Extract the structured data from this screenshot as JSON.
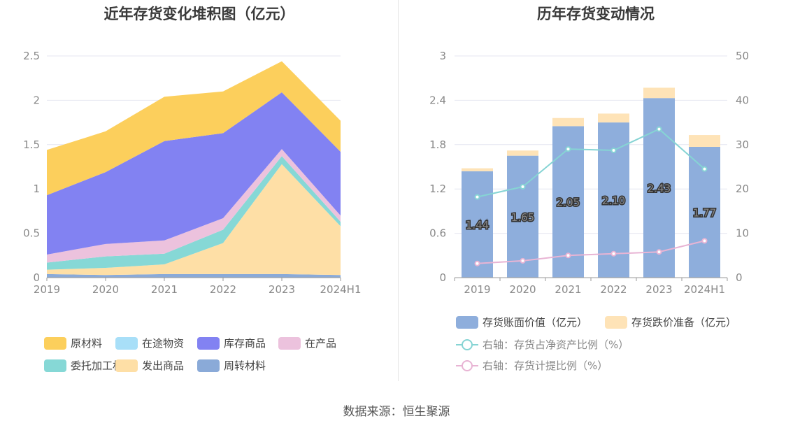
{
  "left_title": "近年存货变化堆积图（亿元）",
  "right_title": "历年存货变动情况",
  "source": "数据来源：恒生聚源",
  "colors": {
    "raw": "#fccf5c",
    "transit": "#a8dff8",
    "stock": "#8282f2",
    "wip": "#ecc2dd",
    "consign": "#86d8d6",
    "shipped": "#fedfa6",
    "turnover": "#8aaad8",
    "bar_main": "#8eaedc",
    "bar_prov": "#fee3b7",
    "line_ratio": "#86d4d4",
    "line_prov": "#e8b4d4",
    "grid": "#e4e6f0",
    "axis": "#999999"
  },
  "chart_data": [
    {
      "type": "area",
      "stacked": true,
      "categories": [
        "2019",
        "2020",
        "2021",
        "2022",
        "2023",
        "2024H1"
      ],
      "ylim": [
        0,
        2.5
      ],
      "yticks": [
        "0",
        "0.5",
        "1",
        "1.5",
        "2",
        "2.5"
      ],
      "grid": true,
      "legend_position": "bottom",
      "series": [
        {
          "name": "周转材料",
          "color_key": "turnover",
          "values": [
            0.04,
            0.03,
            0.04,
            0.04,
            0.04,
            0.03
          ]
        },
        {
          "name": "发出商品",
          "color_key": "shipped",
          "values": [
            0.05,
            0.08,
            0.11,
            0.35,
            1.24,
            0.55
          ]
        },
        {
          "name": "委托加工材料",
          "color_key": "consign",
          "values": [
            0.08,
            0.13,
            0.12,
            0.15,
            0.09,
            0.05
          ]
        },
        {
          "name": "在产品",
          "color_key": "wip",
          "values": [
            0.09,
            0.14,
            0.15,
            0.13,
            0.08,
            0.07
          ]
        },
        {
          "name": "在途物资",
          "color_key": "transit",
          "values": [
            0.0,
            0.0,
            0.0,
            0.0,
            0.0,
            0.0
          ]
        },
        {
          "name": "库存商品",
          "color_key": "stock",
          "values": [
            0.67,
            0.81,
            1.12,
            0.96,
            0.64,
            0.72
          ]
        },
        {
          "name": "原材料",
          "color_key": "raw",
          "values": [
            0.51,
            0.46,
            0.5,
            0.47,
            0.35,
            0.35
          ]
        }
      ],
      "legend_rows": [
        [
          "原材料",
          "在途物资",
          "库存商品",
          "在产品"
        ],
        [
          "委托加工材料",
          "发出商品",
          "周转材料"
        ]
      ]
    },
    {
      "type": "bar",
      "stacked": true,
      "categories": [
        "2019",
        "2020",
        "2021",
        "2022",
        "2023",
        "2024H1"
      ],
      "ylim": [
        0,
        3
      ],
      "yticks": [
        "0",
        "0.6",
        "1.2",
        "1.8",
        "2.4",
        "3"
      ],
      "y2lim": [
        0,
        50
      ],
      "y2ticks": [
        "0",
        "10",
        "20",
        "30",
        "40",
        "50"
      ],
      "grid": true,
      "legend_position": "bottom",
      "series": [
        {
          "name": "存货账面价值（亿元）",
          "kind": "bar",
          "color_key": "bar_main",
          "values": [
            1.44,
            1.65,
            2.05,
            2.1,
            2.43,
            1.77
          ],
          "labels": [
            "1.44",
            "1.65",
            "2.05",
            "2.10",
            "2.43",
            "1.77"
          ]
        },
        {
          "name": "存货跌价准备（亿元）",
          "kind": "bar",
          "color_key": "bar_prov",
          "values": [
            0.04,
            0.07,
            0.11,
            0.12,
            0.14,
            0.16
          ]
        },
        {
          "name": "右轴：存货占净资产比例（%）",
          "kind": "line",
          "color_key": "line_ratio",
          "values": [
            18.2,
            20.5,
            29.0,
            28.7,
            33.5,
            24.5
          ]
        },
        {
          "name": "右轴：存货计提比例（%）",
          "kind": "line",
          "color_key": "line_prov",
          "values": [
            3.2,
            3.8,
            5.0,
            5.4,
            5.8,
            8.3
          ]
        }
      ]
    }
  ]
}
